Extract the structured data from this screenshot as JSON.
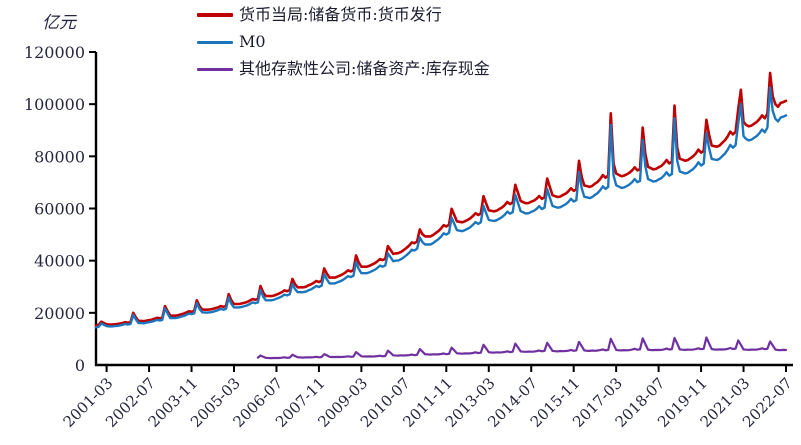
{
  "unit_label": "亿元",
  "chart_data": {
    "type": "line",
    "title": "",
    "xlabel": "",
    "ylabel": "亿元",
    "x_frequency": "monthly",
    "x_start": "2000-11",
    "x_end": "2022-07",
    "x_months_total": 261,
    "ylim": [
      0,
      120000
    ],
    "y_ticks": [
      0,
      20000,
      40000,
      60000,
      80000,
      100000,
      120000
    ],
    "grid": false,
    "legend_position": "top",
    "x_tick_month_indices": [
      4,
      20,
      36,
      52,
      68,
      84,
      100,
      116,
      132,
      148,
      164,
      180,
      196,
      212,
      228,
      244,
      260
    ],
    "x_tick_labels": [
      "2001-03",
      "2002-07",
      "2003-11",
      "2005-03",
      "2006-07",
      "2007-11",
      "2009-03",
      "2010-07",
      "2011-11",
      "2013-03",
      "2014-07",
      "2015-11",
      "2017-03",
      "2018-07",
      "2019-11",
      "2021-03",
      "2022-07"
    ],
    "series": [
      {
        "name": "货币当局:储备货币:货币发行",
        "color": "#c00000",
        "stroke_width": 2.6,
        "start_index": 0,
        "values": [
          15100,
          15400,
          16600,
          16100,
          15600,
          15500,
          15500,
          15600,
          15700,
          15900,
          16100,
          16400,
          16200,
          16400,
          20000,
          18300,
          16900,
          16900,
          16800,
          17000,
          17200,
          17400,
          17700,
          18100,
          17900,
          18100,
          22600,
          20600,
          18900,
          18900,
          18900,
          19100,
          19400,
          19700,
          20100,
          20600,
          20400,
          20700,
          24800,
          22600,
          21300,
          21200,
          21200,
          21300,
          21500,
          21800,
          22100,
          22600,
          22300,
          22600,
          27200,
          24800,
          23400,
          23400,
          23400,
          23600,
          23900,
          24200,
          24700,
          25300,
          25000,
          25300,
          30300,
          27800,
          26400,
          26400,
          26400,
          26600,
          27000,
          27400,
          27900,
          28600,
          28300,
          28700,
          33000,
          31000,
          29800,
          29800,
          29800,
          30000,
          30500,
          30900,
          31500,
          32200,
          31800,
          32300,
          37000,
          35000,
          33500,
          33500,
          33500,
          33900,
          34300,
          34800,
          35500,
          36300,
          35900,
          36400,
          42000,
          39300,
          37700,
          37700,
          37700,
          38000,
          38500,
          39000,
          39700,
          40600,
          40200,
          40700,
          45600,
          44100,
          42600,
          42800,
          42900,
          43400,
          44100,
          44900,
          45800,
          47000,
          46700,
          47400,
          52000,
          50200,
          49300,
          49300,
          49300,
          49800,
          50600,
          51300,
          52300,
          53600,
          53100,
          53800,
          59900,
          57500,
          55100,
          54900,
          54700,
          55100,
          55600,
          56200,
          57100,
          58200,
          57500,
          58100,
          64700,
          62000,
          59300,
          59100,
          58900,
          59200,
          59800,
          60400,
          61300,
          62500,
          61700,
          62300,
          69100,
          66000,
          62900,
          62400,
          62000,
          62100,
          62600,
          63000,
          63700,
          64800,
          63700,
          64200,
          71500,
          68300,
          65100,
          64700,
          64400,
          64600,
          65200,
          65700,
          66600,
          67800,
          66800,
          67300,
          78300,
          72100,
          68800,
          68600,
          68300,
          68700,
          69500,
          70200,
          71300,
          72800,
          71800,
          72600,
          96500,
          77300,
          73400,
          72900,
          72400,
          72600,
          73100,
          73700,
          74600,
          75800,
          74600,
          75100,
          91000,
          81000,
          76000,
          75500,
          75000,
          75200,
          75800,
          76300,
          77300,
          78600,
          77300,
          77900,
          99500,
          83300,
          79100,
          78700,
          78300,
          78600,
          79300,
          80000,
          81100,
          82600,
          81400,
          82100,
          94000,
          88400,
          84100,
          83900,
          83700,
          84200,
          85200,
          86200,
          87600,
          89500,
          88400,
          89400,
          98000,
          105500,
          93200,
          92000,
          91500,
          91800,
          92500,
          93200,
          94300,
          95700,
          94600,
          96400,
          112000,
          103000,
          100000,
          99000,
          100500,
          100800,
          101300
        ]
      },
      {
        "name": "M0",
        "color": "#1b76be",
        "stroke_width": 2.4,
        "start_index": 0,
        "values": [
          14400,
          14700,
          15900,
          15400,
          14900,
          14800,
          14800,
          14900,
          15000,
          15200,
          15400,
          15700,
          15500,
          15700,
          19200,
          17500,
          16100,
          16100,
          16000,
          16200,
          16400,
          16600,
          16900,
          17300,
          17100,
          17300,
          21700,
          19700,
          18000,
          18000,
          18000,
          18200,
          18500,
          18800,
          19200,
          19700,
          19500,
          19800,
          23700,
          21500,
          20200,
          20100,
          20100,
          20200,
          20400,
          20700,
          21000,
          21500,
          21200,
          21500,
          25900,
          23500,
          22100,
          22100,
          22100,
          22300,
          22600,
          22900,
          23400,
          24000,
          23700,
          24000,
          28700,
          26200,
          24800,
          24800,
          24800,
          25000,
          25400,
          25800,
          26300,
          27000,
          26700,
          27100,
          31100,
          29100,
          27900,
          27900,
          27900,
          28100,
          28600,
          29000,
          29600,
          30300,
          29900,
          30400,
          34800,
          32800,
          31300,
          31300,
          31300,
          31700,
          32100,
          32600,
          33300,
          34100,
          33700,
          34200,
          39500,
          36800,
          35200,
          35200,
          35200,
          35500,
          36000,
          36500,
          37200,
          38100,
          37700,
          38200,
          42800,
          41300,
          39800,
          40000,
          40100,
          40600,
          41300,
          42100,
          43000,
          44200,
          43900,
          44600,
          48900,
          47100,
          46200,
          46200,
          46200,
          46700,
          47500,
          48200,
          49200,
          50500,
          50000,
          50700,
          56500,
          54100,
          51700,
          51500,
          51300,
          51700,
          52200,
          52800,
          53700,
          54800,
          54100,
          54700,
          61000,
          58300,
          55600,
          55400,
          55200,
          55500,
          56100,
          56700,
          57600,
          58800,
          58000,
          58600,
          65200,
          62100,
          59000,
          58500,
          58100,
          58200,
          58700,
          59100,
          59800,
          60900,
          59800,
          60300,
          67400,
          64200,
          61000,
          60600,
          60300,
          60500,
          61100,
          61600,
          62500,
          63700,
          62700,
          63200,
          74000,
          67800,
          64500,
          64300,
          64000,
          64400,
          65200,
          65900,
          67000,
          68500,
          67500,
          68300,
          92000,
          72800,
          68900,
          68400,
          67900,
          68100,
          68600,
          69200,
          70100,
          71300,
          70100,
          70600,
          86300,
          76300,
          71300,
          70800,
          70300,
          70500,
          71100,
          71600,
          72600,
          73900,
          72600,
          73200,
          94600,
          78400,
          74200,
          73800,
          73400,
          73700,
          74400,
          75100,
          76200,
          77700,
          76500,
          77200,
          88900,
          83300,
          79000,
          78800,
          78600,
          79100,
          80100,
          81100,
          82500,
          84400,
          83300,
          84300,
          92600,
          100100,
          87800,
          86600,
          86100,
          86400,
          87100,
          87800,
          88900,
          90300,
          89200,
          91000,
          106400,
          97400,
          94400,
          93400,
          94900,
          95200,
          95700
        ]
      },
      {
        "name": "其他存款性公司:储备资产:库存现金",
        "color": "#7030a0",
        "stroke_width": 2.2,
        "start_index": 61,
        "values": [
          2850,
          3650,
          3200,
          2750,
          2700,
          2650,
          2700,
          2700,
          2700,
          2800,
          2950,
          2750,
          2850,
          3900,
          3450,
          2950,
          2900,
          2850,
          2900,
          2900,
          2900,
          3000,
          3150,
          2950,
          3050,
          4150,
          3700,
          3150,
          3050,
          3050,
          3100,
          3050,
          3100,
          3200,
          3350,
          3150,
          3250,
          4950,
          4150,
          3350,
          3250,
          3250,
          3300,
          3250,
          3300,
          3400,
          3550,
          3350,
          3450,
          5500,
          4650,
          3700,
          3650,
          3600,
          3700,
          3650,
          3700,
          3800,
          4000,
          3750,
          3900,
          6100,
          5150,
          4100,
          4050,
          4000,
          4100,
          4050,
          4050,
          4200,
          4400,
          4150,
          4300,
          6650,
          5650,
          4500,
          4400,
          4350,
          4450,
          4400,
          4450,
          4600,
          4850,
          4550,
          4700,
          7750,
          6400,
          4900,
          4800,
          4750,
          4850,
          4800,
          4850,
          5000,
          5250,
          4950,
          5100,
          8200,
          6750,
          5200,
          5100,
          5050,
          5150,
          5100,
          5150,
          5300,
          5550,
          5250,
          5400,
          8500,
          7000,
          5400,
          5300,
          5200,
          5350,
          5300,
          5350,
          5500,
          5800,
          5450,
          5600,
          8850,
          7250,
          5600,
          5450,
          5400,
          5550,
          5450,
          5550,
          5700,
          6000,
          5650,
          5800,
          10050,
          7950,
          5800,
          5650,
          5600,
          5700,
          5650,
          5700,
          5900,
          6200,
          5850,
          6000,
          10200,
          8100,
          5900,
          5750,
          5700,
          5800,
          5750,
          5800,
          6000,
          6300,
          5950,
          6100,
          10350,
          8250,
          6000,
          5850,
          5800,
          5900,
          5850,
          5900,
          6100,
          6400,
          6050,
          6200,
          10550,
          8350,
          6100,
          5950,
          5900,
          6000,
          5950,
          6000,
          6200,
          6500,
          6150,
          6300,
          9450,
          7750,
          6000,
          5850,
          5800,
          5900,
          5850,
          5900,
          6100,
          6400,
          6050,
          6200,
          9000,
          7500,
          5900,
          5750,
          5700,
          5800,
          5750
        ]
      }
    ]
  }
}
